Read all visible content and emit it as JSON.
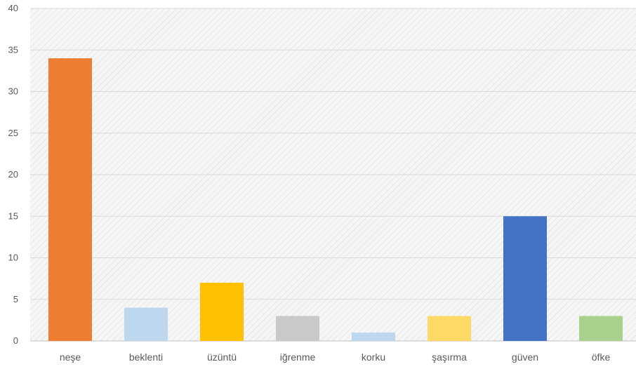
{
  "chart_data": {
    "type": "bar",
    "title": "",
    "xlabel": "",
    "ylabel": "",
    "categories": [
      "neşe",
      "beklenti",
      "üzüntü",
      "iğrenme",
      "korku",
      "şaşırma",
      "güven",
      "öfke"
    ],
    "values": [
      34,
      4,
      7,
      3,
      1,
      3,
      15,
      3
    ],
    "bar_colors": [
      "#ED7D31",
      "#BDD7EE",
      "#FFC000",
      "#C9C9C9",
      "#BDD7EE",
      "#FFD966",
      "#4472C4",
      "#A9D18E"
    ],
    "ylim": [
      0,
      40
    ],
    "yticks": [
      0,
      5,
      10,
      15,
      20,
      25,
      30,
      35,
      40
    ],
    "grid": true,
    "plot_background": "hatched light gray",
    "legend": "none"
  }
}
